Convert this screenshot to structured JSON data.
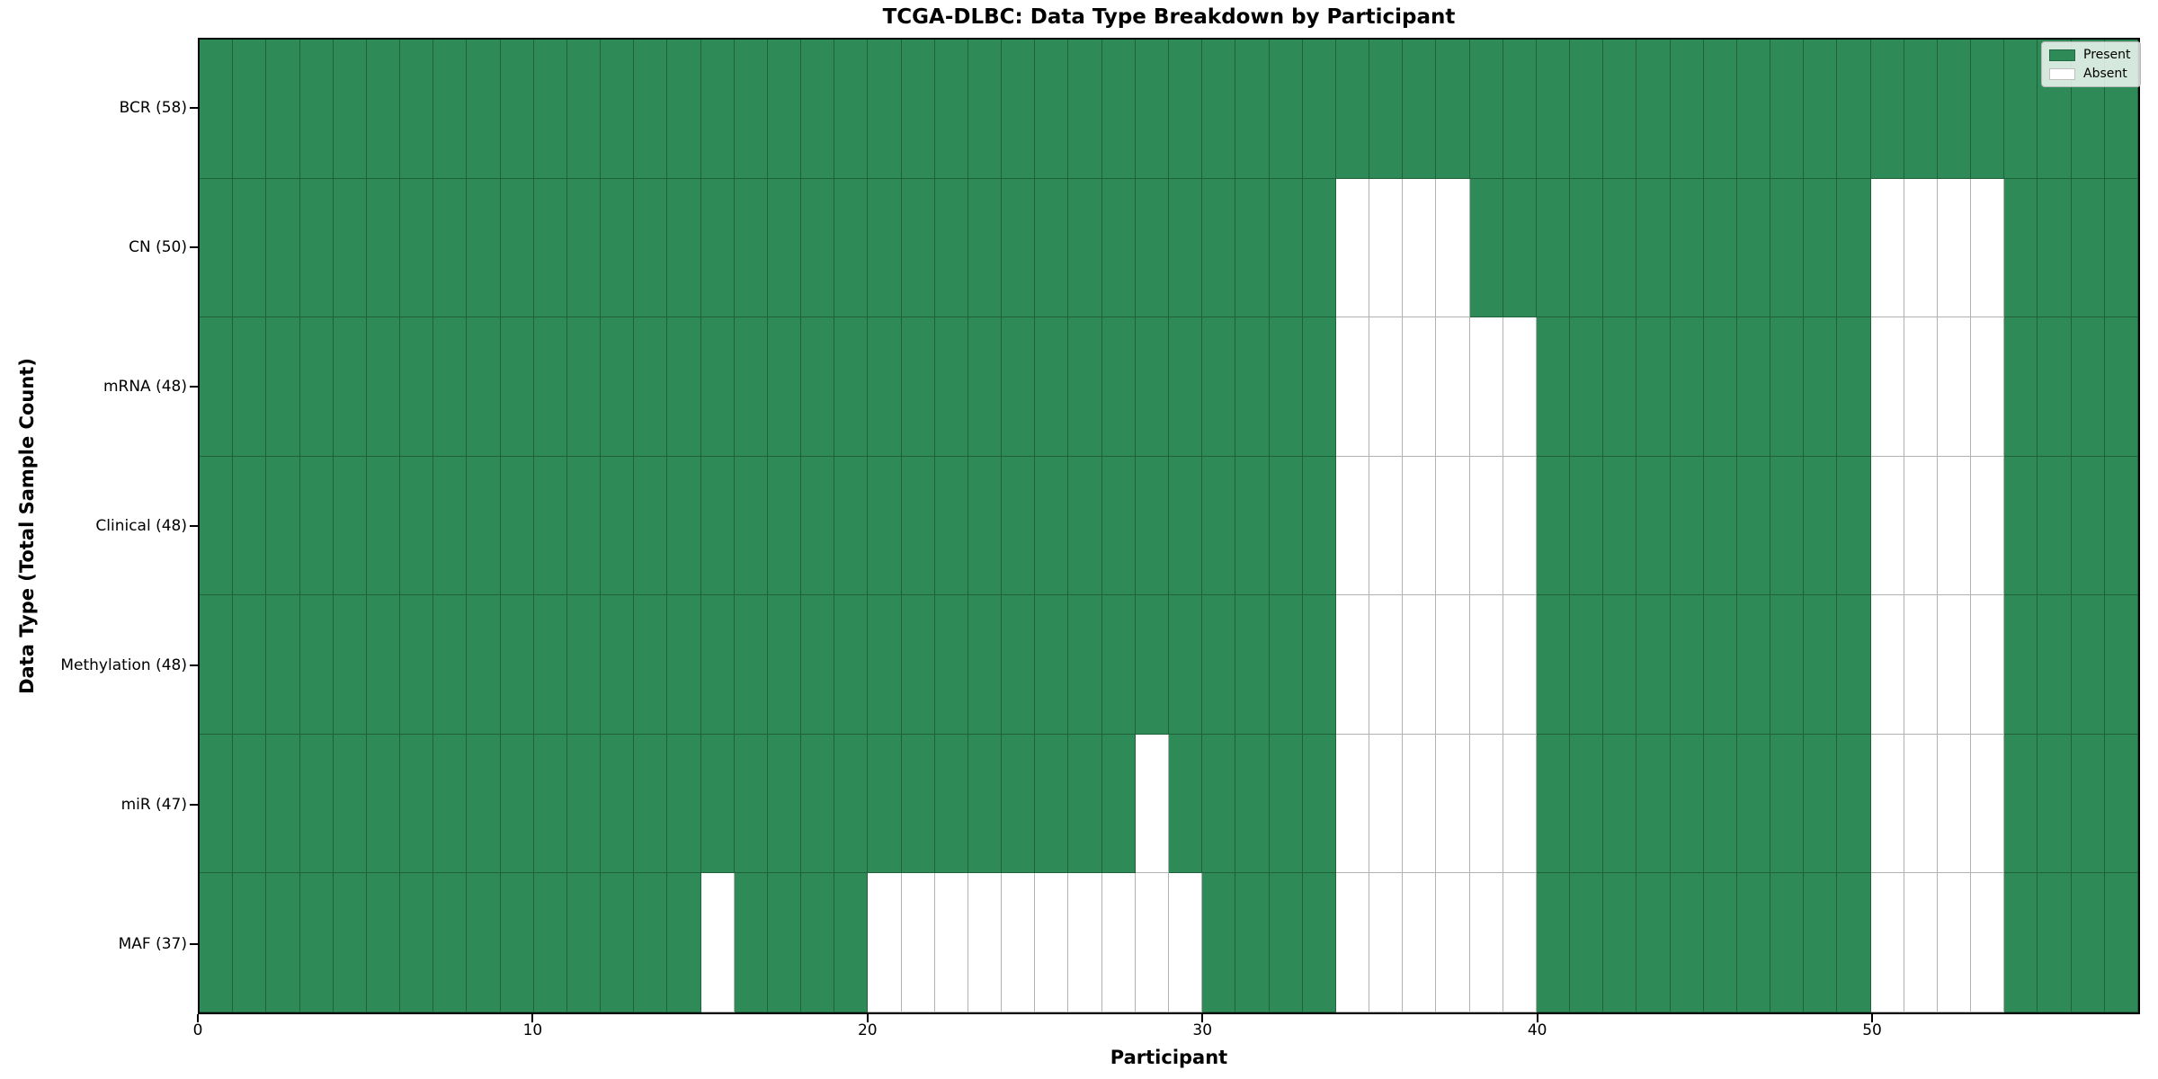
{
  "chart_data": {
    "type": "heatmap",
    "title": "TCGA-DLBC: Data Type Breakdown by Participant",
    "xlabel": "Participant",
    "ylabel": "Data Type (Total Sample Count)",
    "n_participants": 58,
    "xlim": [
      0,
      58
    ],
    "x_ticks": [
      0,
      10,
      20,
      30,
      40,
      50
    ],
    "grid": "cell-borders",
    "rows": [
      {
        "label": "BCR (58)",
        "data_type": "BCR",
        "total": 58,
        "absent_participants": []
      },
      {
        "label": "CN (50)",
        "data_type": "CN",
        "total": 50,
        "absent_participants": [
          34,
          35,
          36,
          37,
          50,
          51,
          52,
          53
        ]
      },
      {
        "label": "mRNA (48)",
        "data_type": "mRNA",
        "total": 48,
        "absent_participants": [
          34,
          35,
          36,
          37,
          38,
          39,
          50,
          51,
          52,
          53
        ]
      },
      {
        "label": "Clinical (48)",
        "data_type": "Clinical",
        "total": 48,
        "absent_participants": [
          34,
          35,
          36,
          37,
          38,
          39,
          50,
          51,
          52,
          53
        ]
      },
      {
        "label": "Methylation (48)",
        "data_type": "Methylation",
        "total": 48,
        "absent_participants": [
          34,
          35,
          36,
          37,
          38,
          39,
          50,
          51,
          52,
          53
        ]
      },
      {
        "label": "miR (47)",
        "data_type": "miR",
        "total": 47,
        "absent_participants": [
          28,
          34,
          35,
          36,
          37,
          38,
          39,
          50,
          51,
          52,
          53
        ]
      },
      {
        "label": "MAF (37)",
        "data_type": "MAF",
        "total": 37,
        "absent_participants": [
          15,
          20,
          21,
          22,
          23,
          24,
          25,
          26,
          27,
          28,
          29,
          34,
          35,
          36,
          37,
          38,
          39,
          50,
          51,
          52,
          53
        ]
      }
    ],
    "legend": {
      "position": "upper right",
      "entries": [
        {
          "label": "Present",
          "color": "#2e8b57"
        },
        {
          "label": "Absent",
          "color": "#ffffff"
        }
      ]
    },
    "colors": {
      "present": "#2e8b57",
      "absent": "#ffffff",
      "cell_edge": "rgba(0,0,0,0.3)",
      "axes_frame": "#000000"
    }
  }
}
